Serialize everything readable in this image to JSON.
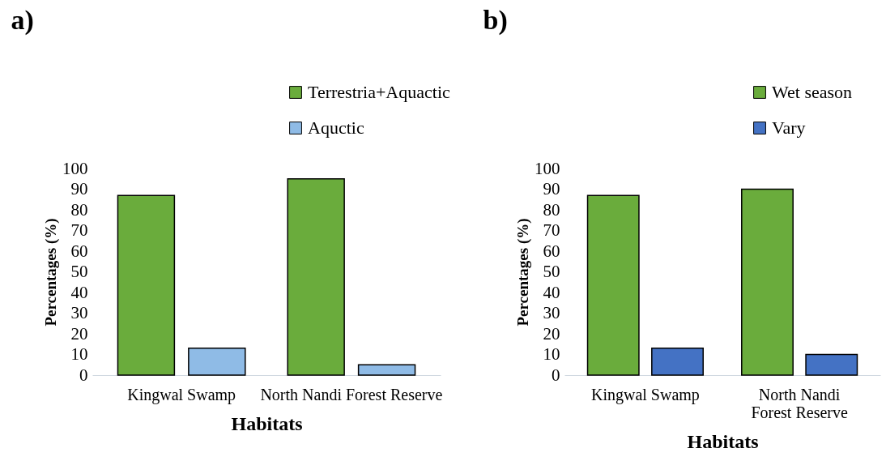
{
  "chart_data": [
    {
      "type": "bar",
      "title": "a)",
      "xlabel": "Habitats",
      "ylabel": "Percentages (%)",
      "categories": [
        "Kingwal Swamp",
        "North Nandi Forest Reserve"
      ],
      "series": [
        {
          "name": "Terrestria+Aquactic",
          "color": "#6aac3c",
          "values": [
            87,
            95
          ]
        },
        {
          "name": "Aquctic",
          "color": "#8fbbe6",
          "values": [
            13,
            5
          ]
        }
      ],
      "ylim": [
        0,
        100
      ],
      "yticks": [
        0,
        10,
        20,
        30,
        40,
        50,
        60,
        70,
        80,
        90,
        100
      ],
      "legend": "top right",
      "grid": false
    },
    {
      "type": "bar",
      "title": "b)",
      "xlabel": "Habitats",
      "ylabel": "Percentages (%)",
      "categories": [
        "Kingwal Swamp",
        "North Nandi Forest Reserve"
      ],
      "series": [
        {
          "name": "Wet season",
          "color": "#6aac3c",
          "values": [
            87,
            90
          ]
        },
        {
          "name": "Vary",
          "color": "#4472c4",
          "values": [
            13,
            10
          ]
        }
      ],
      "ylim": [
        0,
        100
      ],
      "yticks": [
        0,
        10,
        20,
        30,
        40,
        50,
        60,
        70,
        80,
        90,
        100
      ],
      "legend": "top right",
      "grid": false
    }
  ]
}
